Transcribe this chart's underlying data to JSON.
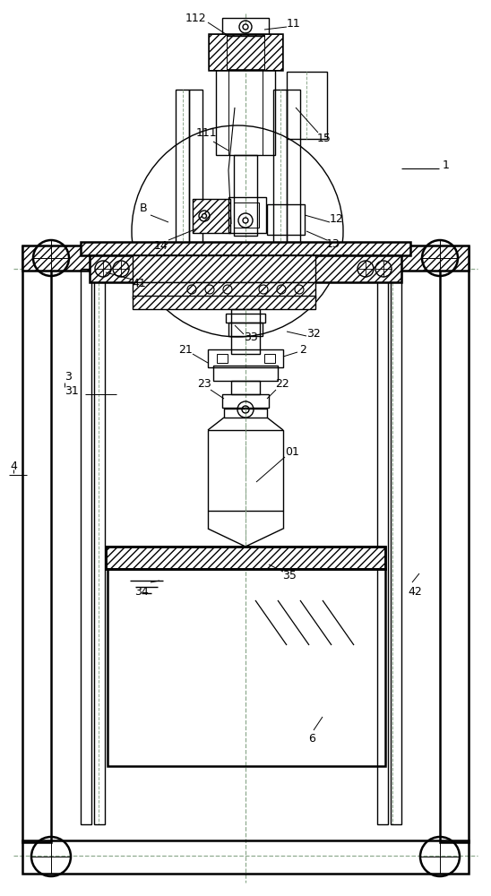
{
  "bg_color": "#ffffff",
  "line_color": "#000000",
  "dashed_color": "#8faa8f",
  "lw": 1.0,
  "lw2": 1.8
}
